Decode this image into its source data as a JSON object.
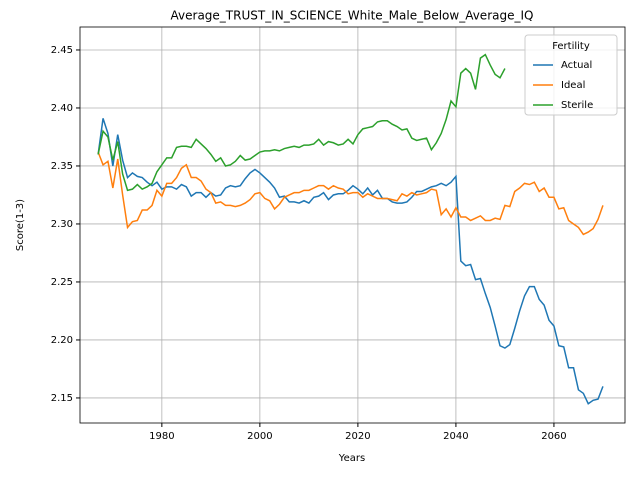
{
  "chart_data": {
    "type": "line",
    "title": "Average_TRUST_IN_SCIENCE_White_Male_Below_Average_IQ",
    "x_label": "Years",
    "y_label": "Score(1-3)",
    "legend_title": "Fertility",
    "legend_position": "upper right",
    "grid": true,
    "xlim": [
      1963.3,
      2074.5
    ],
    "ylim": [
      2.1284,
      2.4698
    ],
    "xticks": [
      1980,
      2000,
      2020,
      2040,
      2060
    ],
    "yticks": [
      2.15,
      {
        "value": 2.2,
        "label": "2.20"
      },
      2.25,
      {
        "value": 2.3,
        "label": "2.30"
      },
      2.35,
      {
        "value": 2.4,
        "label": "2.40"
      },
      2.45
    ],
    "x": [
      1967,
      1968,
      1969,
      1970,
      1971,
      1972,
      1973,
      1974,
      1975,
      1976,
      1977,
      1978,
      1979,
      1980,
      1981,
      1982,
      1983,
      1984,
      1985,
      1986,
      1987,
      1988,
      1989,
      1990,
      1991,
      1992,
      1993,
      1994,
      1995,
      1996,
      1997,
      1998,
      1999,
      2000,
      2001,
      2002,
      2003,
      2004,
      2005,
      2006,
      2007,
      2008,
      2009,
      2010,
      2011,
      2012,
      2013,
      2014,
      2015,
      2016,
      2017,
      2018,
      2019,
      2020,
      2021,
      2022,
      2023,
      2024,
      2025,
      2026,
      2027,
      2028,
      2029,
      2030,
      2031,
      2032,
      2033,
      2034,
      2035,
      2036,
      2037,
      2038,
      2039,
      2040,
      2041,
      2042,
      2043,
      2044,
      2045,
      2046,
      2047,
      2048,
      2049,
      2050,
      2051,
      2052,
      2053,
      2054,
      2055,
      2056,
      2057,
      2058,
      2059,
      2060,
      2061,
      2062,
      2063,
      2064,
      2065,
      2066,
      2067,
      2068,
      2069,
      2070
    ],
    "series": [
      {
        "name": "Actual",
        "color": "#1f77b4",
        "values": [
          2.36,
          2.391,
          2.378,
          2.35,
          2.377,
          2.355,
          2.34,
          2.344,
          2.341,
          2.34,
          2.336,
          2.333,
          2.336,
          2.33,
          2.332,
          2.332,
          2.33,
          2.334,
          2.332,
          2.324,
          2.327,
          2.327,
          2.323,
          2.327,
          2.324,
          2.325,
          2.331,
          2.333,
          2.332,
          2.333,
          2.339,
          2.344,
          2.347,
          2.344,
          2.34,
          2.336,
          2.331,
          2.323,
          2.324,
          2.319,
          2.319,
          2.318,
          2.32,
          2.318,
          2.323,
          2.324,
          2.327,
          2.321,
          2.325,
          2.326,
          2.326,
          2.329,
          2.333,
          2.33,
          2.326,
          2.331,
          2.325,
          2.329,
          2.322,
          2.322,
          2.319,
          2.318,
          2.318,
          2.319,
          2.323,
          2.328,
          2.328,
          2.33,
          2.332,
          2.333,
          2.335,
          2.333,
          2.336,
          2.341,
          2.268,
          2.264,
          2.265,
          2.252,
          2.253,
          2.24,
          2.228,
          2.212,
          2.195,
          2.193,
          2.196,
          2.21,
          2.225,
          2.238,
          2.246,
          2.246,
          2.235,
          2.23,
          2.217,
          2.212,
          2.195,
          2.194,
          2.176,
          2.176,
          2.157,
          2.154,
          2.145,
          2.148,
          2.149,
          2.16
        ]
      },
      {
        "name": "Ideal",
        "color": "#ff7f0e",
        "values": [
          2.362,
          2.351,
          2.354,
          2.331,
          2.356,
          2.325,
          2.297,
          2.302,
          2.303,
          2.312,
          2.312,
          2.316,
          2.329,
          2.324,
          2.335,
          2.335,
          2.34,
          2.348,
          2.351,
          2.34,
          2.34,
          2.337,
          2.33,
          2.327,
          2.318,
          2.319,
          2.316,
          2.316,
          2.315,
          2.316,
          2.318,
          2.321,
          2.326,
          2.327,
          2.322,
          2.32,
          2.313,
          2.317,
          2.323,
          2.325,
          2.327,
          2.327,
          2.329,
          2.329,
          2.331,
          2.333,
          2.333,
          2.33,
          2.333,
          2.331,
          2.33,
          2.326,
          2.327,
          2.327,
          2.323,
          2.326,
          2.324,
          2.322,
          2.322,
          2.322,
          2.321,
          2.32,
          2.326,
          2.324,
          2.327,
          2.325,
          2.326,
          2.327,
          2.33,
          2.329,
          2.308,
          2.313,
          2.306,
          2.314,
          2.306,
          2.306,
          2.303,
          2.305,
          2.307,
          2.303,
          2.303,
          2.305,
          2.304,
          2.316,
          2.315,
          2.328,
          2.331,
          2.335,
          2.334,
          2.336,
          2.328,
          2.331,
          2.323,
          2.323,
          2.313,
          2.314,
          2.303,
          2.3,
          2.297,
          2.291,
          2.293,
          2.296,
          2.304,
          2.316
        ]
      },
      {
        "name": "Sterile",
        "color": "#2ca02c",
        "values": [
          2.36,
          2.38,
          2.375,
          2.355,
          2.371,
          2.343,
          2.329,
          2.33,
          2.334,
          2.33,
          2.332,
          2.335,
          2.345,
          2.351,
          2.357,
          2.357,
          2.366,
          2.367,
          2.367,
          2.366,
          2.373,
          2.369,
          2.365,
          2.36,
          2.354,
          2.357,
          2.35,
          2.351,
          2.354,
          2.359,
          2.355,
          2.356,
          2.359,
          2.362,
          2.363,
          2.363,
          2.364,
          2.363,
          2.365,
          2.366,
          2.367,
          2.366,
          2.368,
          2.368,
          2.369,
          2.373,
          2.368,
          2.371,
          2.37,
          2.368,
          2.369,
          2.373,
          2.369,
          2.377,
          2.382,
          2.383,
          2.384,
          2.388,
          2.389,
          2.389,
          2.386,
          2.384,
          2.381,
          2.382,
          2.374,
          2.372,
          2.373,
          2.374,
          2.364,
          2.37,
          2.378,
          2.39,
          2.406,
          2.401,
          2.43,
          2.434,
          2.43,
          2.416,
          2.443,
          2.446,
          2.437,
          2.429,
          2.426,
          2.434,
          null,
          null,
          null,
          null,
          null,
          null,
          null,
          null,
          null,
          null,
          null,
          null,
          null,
          null,
          null,
          null,
          null,
          null,
          null,
          null
        ]
      }
    ]
  }
}
